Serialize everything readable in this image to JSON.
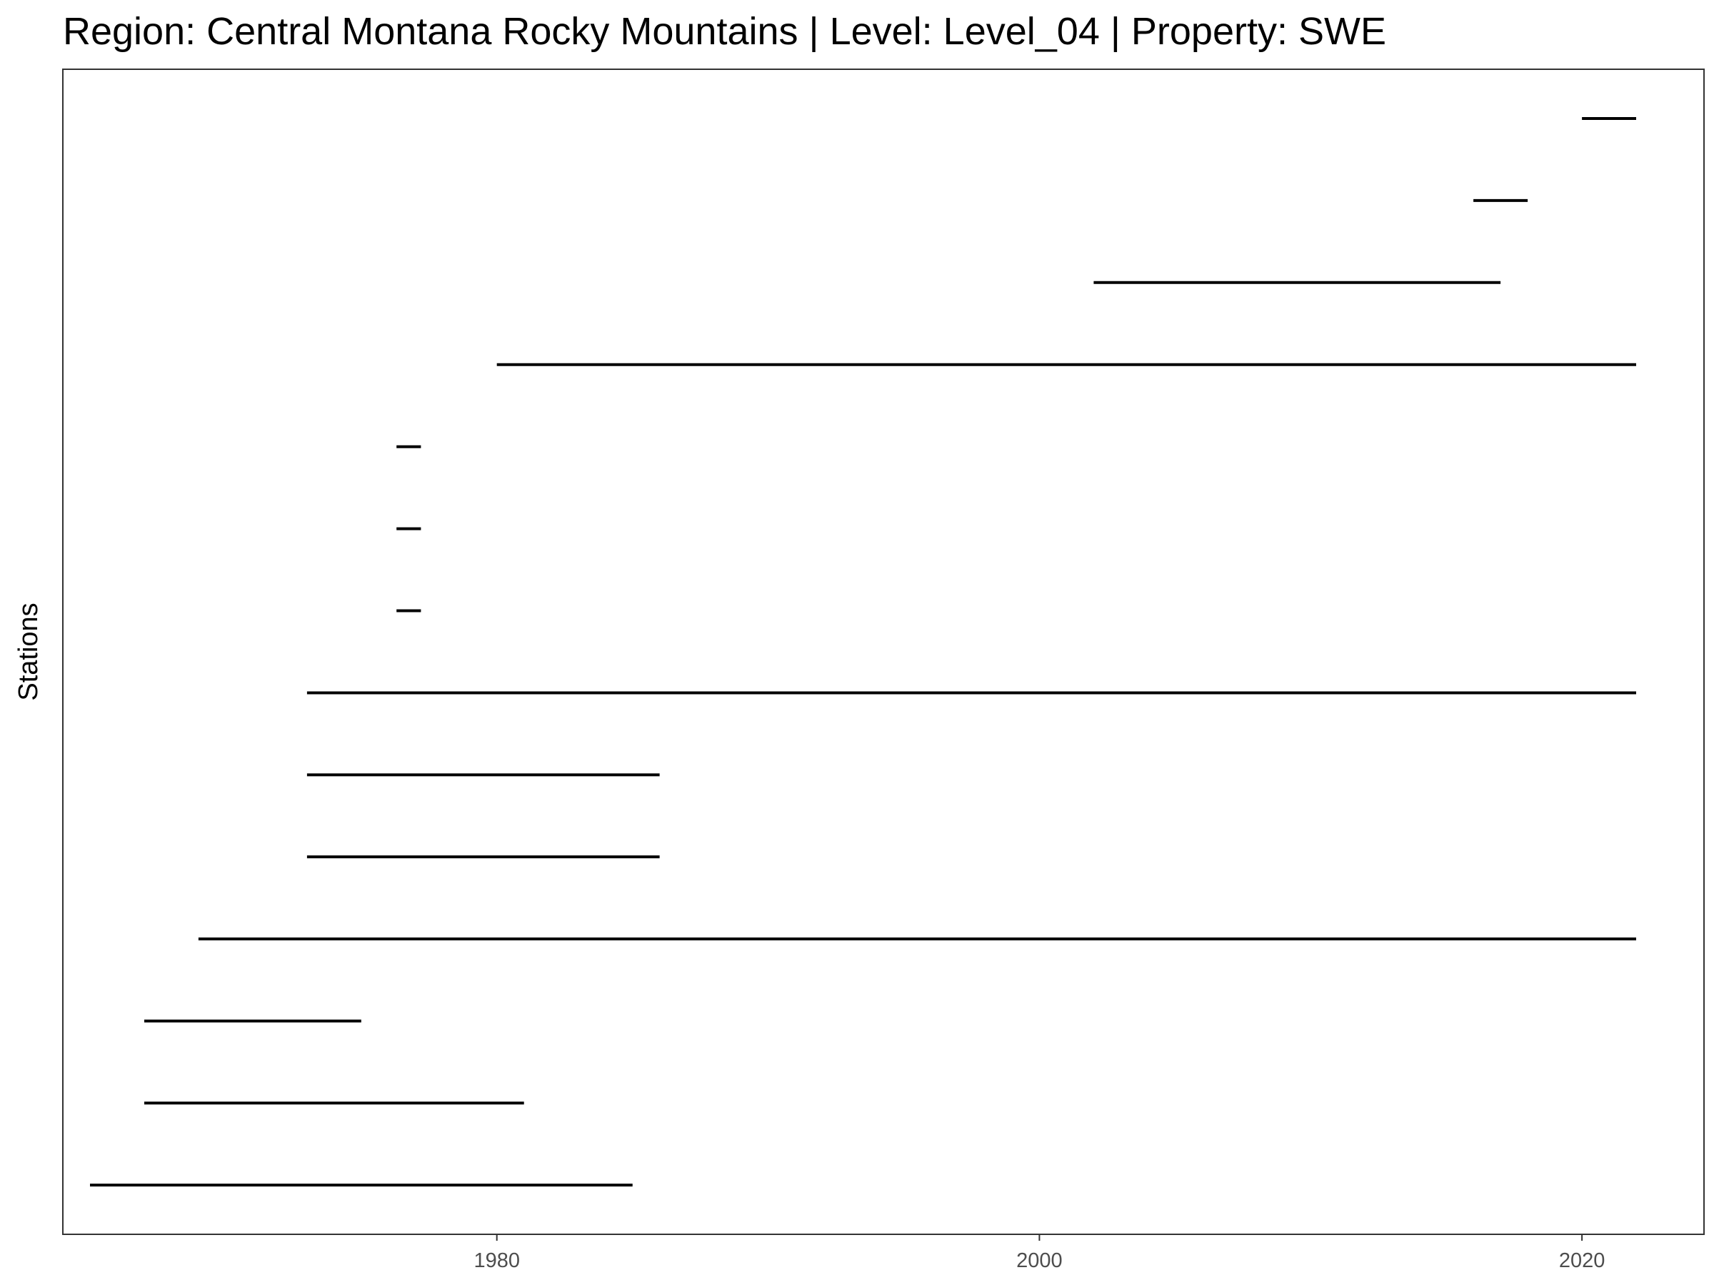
{
  "chart_data": {
    "type": "gantt",
    "title": "Region: Central Montana Rocky Mountains | Level: Level_04 | Property: SWE",
    "xlabel": "",
    "ylabel": "Stations",
    "xlim": [
      1964,
      2024.5
    ],
    "x_ticks": [
      1980,
      2000,
      2020
    ],
    "x_tick_labels": [
      "1980",
      "2000",
      "2020"
    ],
    "grid": false,
    "colors": {
      "segment": "#000000",
      "panel_border": "#333333",
      "tick_text": "#4d4d4d",
      "background": "#ffffff"
    },
    "segments": [
      {
        "start": 1965,
        "end": 1985
      },
      {
        "start": 1967,
        "end": 1981
      },
      {
        "start": 1967,
        "end": 1975
      },
      {
        "start": 1969,
        "end": 2022
      },
      {
        "start": 1973,
        "end": 1986
      },
      {
        "start": 1973,
        "end": 1986
      },
      {
        "start": 1973,
        "end": 2022
      },
      {
        "start": 1976.3,
        "end": 1977.2
      },
      {
        "start": 1976.3,
        "end": 1977.2
      },
      {
        "start": 1976.3,
        "end": 1977.2
      },
      {
        "start": 1980,
        "end": 2022
      },
      {
        "start": 2002,
        "end": 2017
      },
      {
        "start": 2016,
        "end": 2018
      },
      {
        "start": 2020,
        "end": 2022
      }
    ]
  }
}
